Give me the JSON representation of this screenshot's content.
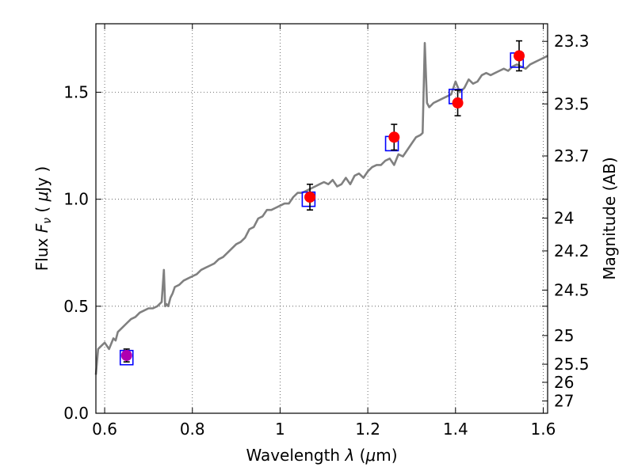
{
  "chart_data": {
    "type": "scatter",
    "xlabel": {
      "prefix": "Wavelength  ",
      "sym": "λ",
      "mid": " (",
      "mu": "μ",
      "unit": "m)"
    },
    "ylabel": {
      "prefix": "Flux  ",
      "sym": "F",
      "sub": "ν",
      "mid": "  ( ",
      "mu": "μ",
      "unit": "Jy )"
    },
    "y2label": "Magnitude (AB)",
    "xlim": [
      0.58,
      1.61
    ],
    "ylim": [
      0.0,
      1.82
    ],
    "xticks": [
      0.6,
      0.8,
      1.0,
      1.2,
      1.4,
      1.6
    ],
    "xtick_labels": [
      "0.6",
      "0.8",
      "1",
      "1.2",
      "1.4",
      "1.6"
    ],
    "yticks": [
      0.0,
      0.5,
      1.0,
      1.5
    ],
    "ytick_labels": [
      "0.0",
      "0.5",
      "1.0",
      "1.5"
    ],
    "mag_ticks": [
      "23.3",
      "23.5",
      "23.7",
      "24",
      "24.2",
      "24.5",
      "25",
      "25.5",
      "26",
      "27"
    ],
    "grid": true,
    "series": [
      {
        "name": "model spectrum",
        "kind": "line",
        "color": "#808080",
        "x": [
          0.58,
          0.585,
          0.59,
          0.6,
          0.61,
          0.62,
          0.625,
          0.63,
          0.64,
          0.65,
          0.66,
          0.67,
          0.68,
          0.69,
          0.7,
          0.71,
          0.72,
          0.73,
          0.735,
          0.738,
          0.741,
          0.745,
          0.75,
          0.755,
          0.76,
          0.77,
          0.78,
          0.79,
          0.8,
          0.81,
          0.82,
          0.83,
          0.84,
          0.85,
          0.86,
          0.87,
          0.88,
          0.89,
          0.9,
          0.91,
          0.92,
          0.93,
          0.94,
          0.95,
          0.96,
          0.97,
          0.98,
          0.99,
          1.0,
          1.01,
          1.02,
          1.03,
          1.04,
          1.05,
          1.06,
          1.07,
          1.08,
          1.09,
          1.1,
          1.11,
          1.12,
          1.13,
          1.14,
          1.15,
          1.16,
          1.17,
          1.18,
          1.19,
          1.2,
          1.21,
          1.22,
          1.23,
          1.24,
          1.25,
          1.26,
          1.27,
          1.28,
          1.29,
          1.3,
          1.31,
          1.32,
          1.325,
          1.33,
          1.335,
          1.34,
          1.35,
          1.36,
          1.37,
          1.38,
          1.39,
          1.4,
          1.41,
          1.42,
          1.43,
          1.44,
          1.45,
          1.46,
          1.47,
          1.48,
          1.49,
          1.5,
          1.51,
          1.52,
          1.53,
          1.54,
          1.55,
          1.56,
          1.57,
          1.58,
          1.59,
          1.6,
          1.61
        ],
        "y": [
          0.18,
          0.3,
          0.31,
          0.33,
          0.3,
          0.35,
          0.34,
          0.38,
          0.4,
          0.42,
          0.44,
          0.45,
          0.47,
          0.48,
          0.49,
          0.49,
          0.5,
          0.52,
          0.67,
          0.5,
          0.51,
          0.5,
          0.54,
          0.56,
          0.59,
          0.6,
          0.62,
          0.63,
          0.64,
          0.65,
          0.67,
          0.68,
          0.69,
          0.7,
          0.72,
          0.73,
          0.75,
          0.77,
          0.79,
          0.8,
          0.82,
          0.86,
          0.87,
          0.91,
          0.92,
          0.95,
          0.95,
          0.96,
          0.97,
          0.98,
          0.98,
          1.01,
          1.03,
          1.03,
          1.04,
          1.05,
          1.06,
          1.07,
          1.08,
          1.07,
          1.09,
          1.06,
          1.07,
          1.1,
          1.07,
          1.11,
          1.12,
          1.1,
          1.13,
          1.15,
          1.16,
          1.16,
          1.18,
          1.19,
          1.16,
          1.21,
          1.2,
          1.23,
          1.26,
          1.29,
          1.3,
          1.31,
          1.73,
          1.45,
          1.43,
          1.45,
          1.46,
          1.47,
          1.48,
          1.49,
          1.55,
          1.5,
          1.52,
          1.56,
          1.54,
          1.55,
          1.58,
          1.59,
          1.58,
          1.59,
          1.6,
          1.61,
          1.6,
          1.62,
          1.63,
          1.62,
          1.61,
          1.63,
          1.64,
          1.65,
          1.66,
          1.67
        ]
      },
      {
        "name": "model photometry",
        "kind": "open-square",
        "color": "#0000ff",
        "x": [
          0.65,
          1.065,
          1.255,
          1.4,
          1.54
        ],
        "y": [
          0.26,
          1.0,
          1.26,
          1.48,
          1.65
        ]
      },
      {
        "name": "observed photometry",
        "kind": "circle-errorbar",
        "color": "#ff0000",
        "x": [
          0.65,
          1.068,
          1.26,
          1.405,
          1.545
        ],
        "y": [
          0.27,
          1.01,
          1.29,
          1.45,
          1.67
        ],
        "yerr": [
          0.03,
          0.06,
          0.06,
          0.06,
          0.07
        ],
        "point_colors": [
          "#b000b0",
          "#ff0000",
          "#ff0000",
          "#ff0000",
          "#ff0000"
        ]
      }
    ]
  }
}
